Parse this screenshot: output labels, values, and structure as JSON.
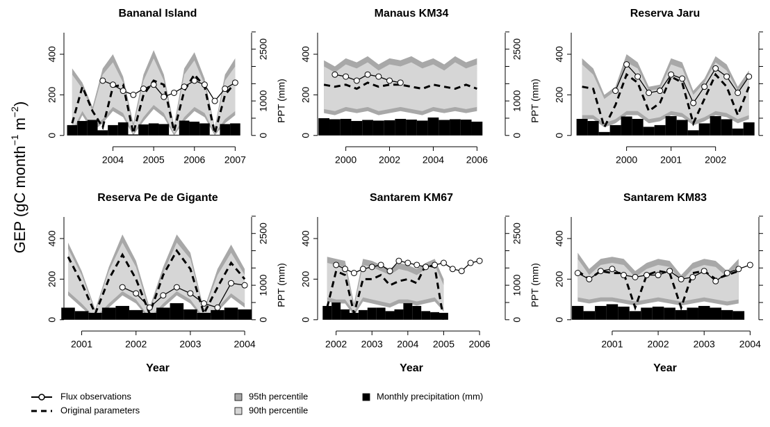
{
  "ylabel": {
    "text": "GEP (gC month",
    "sup1": "−1",
    "mid": " m",
    "sup2": "−2",
    "end": ")"
  },
  "xlabel": "Year",
  "y2label": "PPT (mm)",
  "legend": {
    "flux": {
      "name": "Flux observations",
      "color": "#000000"
    },
    "original": {
      "name": "Original parameters",
      "color": "#000000"
    },
    "p95": {
      "name": "95th percentile",
      "color": "#a8a8a8"
    },
    "p90": {
      "name": "90th percentile",
      "color": "#d6d6d6"
    },
    "precip": {
      "name": "Monthly precipitation (mm)",
      "color": "#000000"
    }
  },
  "chart_data": [
    {
      "type": "band-line",
      "title": "Bananal Island",
      "xlim": [
        2002.9,
        2007.3
      ],
      "xticks": [
        2004,
        2005,
        2006,
        2007
      ],
      "ylim": [
        -35,
        513
      ],
      "yticks": [
        0,
        200,
        400
      ],
      "y2lim": [
        -206,
        3018
      ],
      "y2ticks": [
        0,
        1000,
        2500
      ],
      "y2minor": [
        500,
        1500,
        2000,
        3000
      ],
      "x": [
        2003,
        2003.25,
        2003.5,
        2003.75,
        2004,
        2004.25,
        2004.5,
        2004.75,
        2005,
        2005.25,
        2005.5,
        2005.75,
        2006,
        2006.25,
        2006.5,
        2006.75,
        2007
      ],
      "p95": {
        "upper": [
          330,
          260,
          140,
          330,
          400,
          290,
          60,
          300,
          420,
          300,
          50,
          330,
          410,
          280,
          40,
          300,
          380
        ],
        "lower": [
          0,
          100,
          20,
          60,
          120,
          90,
          0,
          70,
          130,
          90,
          0,
          70,
          120,
          90,
          0,
          60,
          100
        ]
      },
      "p90": {
        "upper": [
          300,
          230,
          120,
          300,
          360,
          260,
          40,
          270,
          380,
          270,
          30,
          300,
          370,
          250,
          30,
          270,
          340
        ],
        "lower": [
          20,
          120,
          40,
          80,
          140,
          110,
          10,
          90,
          150,
          110,
          10,
          90,
          140,
          110,
          10,
          80,
          120
        ]
      },
      "original": [
        60,
        240,
        120,
        40,
        240,
        250,
        10,
        200,
        270,
        250,
        20,
        220,
        300,
        240,
        10,
        200,
        260
      ],
      "flux": [
        null,
        null,
        null,
        270,
        250,
        220,
        200,
        230,
        250,
        190,
        210,
        240,
        270,
        250,
        170,
        230,
        260
      ],
      "precip": [
        300,
        420,
        450,
        150,
        300,
        380,
        30,
        320,
        350,
        330,
        20,
        430,
        400,
        350,
        20,
        330,
        350
      ]
    },
    {
      "type": "band-line",
      "title": "Manaus KM34",
      "xlim": [
        1998.9,
        2007.1
      ],
      "xticks": [
        2000,
        2002,
        2004,
        2006
      ],
      "ylim": [
        -35,
        513
      ],
      "yticks": [
        0,
        200,
        400
      ],
      "y2lim": [
        -206,
        3018
      ],
      "y2ticks": [
        0,
        1000,
        2500
      ],
      "y2minor": [
        500,
        1500,
        2000,
        3000
      ],
      "x": [
        1999,
        1999.5,
        2000,
        2000.5,
        2001,
        2001.5,
        2002,
        2002.5,
        2003,
        2003.5,
        2004,
        2004.5,
        2005,
        2005.5,
        2006
      ],
      "p95": {
        "upper": [
          370,
          340,
          380,
          360,
          390,
          350,
          380,
          370,
          390,
          360,
          380,
          350,
          390,
          360,
          380
        ],
        "lower": [
          110,
          100,
          120,
          110,
          120,
          100,
          110,
          120,
          110,
          100,
          120,
          110,
          120,
          110,
          120
        ]
      },
      "p90": {
        "upper": [
          340,
          310,
          350,
          330,
          360,
          320,
          350,
          340,
          360,
          330,
          350,
          320,
          360,
          330,
          350
        ],
        "lower": [
          130,
          120,
          140,
          130,
          140,
          120,
          130,
          140,
          130,
          120,
          140,
          130,
          140,
          130,
          140
        ]
      },
      "original": [
        250,
        240,
        250,
        230,
        260,
        240,
        250,
        250,
        240,
        230,
        250,
        240,
        230,
        250,
        230
      ],
      "flux": [
        null,
        300,
        290,
        270,
        300,
        290,
        270,
        260,
        null,
        null,
        null,
        null,
        null,
        null,
        null
      ],
      "precip": [
        500,
        470,
        480,
        420,
        450,
        430,
        440,
        480,
        460,
        430,
        520,
        450,
        470,
        460,
        400
      ]
    },
    {
      "type": "band-line",
      "title": "Reserva Jaru",
      "xlim": [
        1998.85,
        2002.88
      ],
      "xticks": [
        2000,
        2001,
        2002
      ],
      "ylim": [
        -35,
        513
      ],
      "yticks": [
        0,
        200,
        400
      ],
      "y2lim": [
        -206,
        3018
      ],
      "y2minor": [
        0,
        500,
        1000,
        1500,
        2000,
        2500,
        3000
      ],
      "x": [
        1999,
        1999.25,
        1999.5,
        1999.75,
        2000,
        2000.25,
        2000.5,
        2000.75,
        2001,
        2001.25,
        2001.5,
        2001.75,
        2002,
        2002.25,
        2002.5,
        2002.75
      ],
      "p95": {
        "upper": [
          380,
          330,
          200,
          240,
          400,
          360,
          240,
          250,
          380,
          360,
          220,
          280,
          390,
          350,
          240,
          320
        ],
        "lower": [
          80,
          80,
          40,
          60,
          100,
          100,
          60,
          70,
          100,
          90,
          50,
          70,
          100,
          90,
          60,
          80
        ]
      },
      "p90": {
        "upper": [
          350,
          300,
          180,
          220,
          360,
          330,
          220,
          230,
          350,
          330,
          200,
          260,
          360,
          320,
          220,
          290
        ],
        "lower": [
          100,
          100,
          60,
          80,
          120,
          120,
          80,
          90,
          120,
          110,
          70,
          90,
          120,
          110,
          80,
          100
        ]
      },
      "original": [
        240,
        230,
        40,
        150,
        300,
        260,
        120,
        160,
        290,
        260,
        60,
        180,
        300,
        240,
        100,
        240
      ],
      "flux": [
        null,
        null,
        null,
        220,
        350,
        290,
        210,
        220,
        300,
        280,
        160,
        240,
        330,
        290,
        210,
        290
      ],
      "precip": [
        480,
        420,
        100,
        300,
        550,
        480,
        250,
        300,
        560,
        450,
        150,
        350,
        560,
        470,
        200,
        380
      ]
    },
    {
      "type": "band-line",
      "title": "Reserva Pe de Gigante",
      "xlim": [
        2000.75,
        2004.05
      ],
      "xticks": [
        2001,
        2002,
        2003,
        2004
      ],
      "ylim": [
        -35,
        513
      ],
      "yticks": [
        0,
        200,
        400
      ],
      "y2lim": [
        -206,
        3018
      ],
      "y2ticks": [
        0,
        1000,
        2500
      ],
      "y2minor": [
        500,
        1500,
        2000,
        3000
      ],
      "x": [
        2000.75,
        2001,
        2001.25,
        2001.5,
        2001.75,
        2002,
        2002.25,
        2002.5,
        2002.75,
        2003,
        2003.25,
        2003.5,
        2003.75,
        2004
      ],
      "p95": {
        "upper": [
          380,
          240,
          50,
          260,
          420,
          290,
          60,
          260,
          420,
          330,
          50,
          250,
          370,
          250
        ],
        "lower": [
          120,
          60,
          0,
          60,
          120,
          80,
          0,
          60,
          120,
          80,
          0,
          40,
          110,
          60
        ]
      },
      "p90": {
        "upper": [
          350,
          220,
          40,
          240,
          380,
          260,
          40,
          230,
          380,
          300,
          40,
          220,
          330,
          220
        ],
        "lower": [
          140,
          80,
          10,
          80,
          140,
          100,
          10,
          80,
          140,
          100,
          10,
          60,
          130,
          80
        ]
      },
      "original": [
        310,
        180,
        30,
        200,
        320,
        200,
        30,
        220,
        340,
        250,
        30,
        160,
        280,
        200
      ],
      "flux": [
        null,
        null,
        null,
        null,
        160,
        130,
        60,
        120,
        160,
        130,
        80,
        60,
        180,
        170
      ],
      "precip": [
        350,
        250,
        200,
        350,
        400,
        280,
        200,
        350,
        480,
        300,
        200,
        280,
        350,
        300
      ]
    },
    {
      "type": "band-line",
      "title": "Santarem KM67",
      "xlim": [
        2001.6,
        2006.6
      ],
      "xticks": [
        2002,
        2003,
        2004,
        2005,
        2006
      ],
      "ylim": [
        -35,
        513
      ],
      "yticks": [
        0,
        200,
        400
      ],
      "y2lim": [
        -206,
        3018
      ],
      "y2ticks": [
        0,
        1000,
        2500
      ],
      "y2minor": [
        500,
        1500,
        2000,
        3000
      ],
      "x": [
        2001.75,
        2002,
        2002.25,
        2002.5,
        2002.75,
        2003,
        2003.25,
        2003.5,
        2003.75,
        2004,
        2004.25,
        2004.5,
        2004.75,
        2005,
        2005.25,
        2005.5,
        2005.75,
        2006
      ],
      "p95": {
        "upper": [
          310,
          300,
          290,
          80,
          300,
          290,
          270,
          250,
          280,
          270,
          250,
          280,
          300,
          200,
          null,
          null,
          null,
          null
        ],
        "lower": [
          90,
          80,
          80,
          20,
          90,
          80,
          70,
          60,
          80,
          80,
          70,
          80,
          90,
          40,
          null,
          null,
          null,
          null
        ]
      },
      "p90": {
        "upper": [
          280,
          270,
          260,
          60,
          270,
          260,
          240,
          220,
          250,
          240,
          220,
          250,
          270,
          170,
          null,
          null,
          null,
          null
        ],
        "lower": [
          110,
          100,
          100,
          40,
          110,
          100,
          90,
          80,
          100,
          100,
          90,
          100,
          110,
          60,
          null,
          null,
          null,
          null
        ]
      },
      "original": [
        60,
        240,
        220,
        30,
        200,
        200,
        220,
        170,
        190,
        200,
        180,
        270,
        260,
        0,
        null,
        null,
        null,
        null
      ],
      "flux": [
        null,
        270,
        250,
        230,
        250,
        260,
        270,
        240,
        290,
        280,
        270,
        260,
        270,
        280,
        250,
        240,
        280,
        290
      ],
      "precip": [
        400,
        500,
        300,
        200,
        280,
        350,
        350,
        250,
        300,
        480,
        400,
        250,
        220,
        200,
        null,
        null,
        null,
        null
      ]
    },
    {
      "type": "band-line",
      "title": "Santarem KM83",
      "xlim": [
        2000.2,
        2004.1
      ],
      "xticks": [
        2001,
        2002,
        2003,
        2004
      ],
      "ylim": [
        -35,
        513
      ],
      "yticks": [
        0,
        200,
        400
      ],
      "y2lim": [
        -206,
        3018
      ],
      "y2minor": [
        0,
        500,
        1000,
        1500,
        2000,
        2500,
        3000
      ],
      "x": [
        2000.25,
        2000.5,
        2000.75,
        2001,
        2001.25,
        2001.5,
        2001.75,
        2002,
        2002.25,
        2002.5,
        2002.75,
        2003,
        2003.25,
        2003.5,
        2003.75,
        2004
      ],
      "p95": {
        "upper": [
          330,
          250,
          300,
          310,
          300,
          240,
          280,
          300,
          290,
          220,
          280,
          300,
          290,
          240,
          300,
          null
        ],
        "lower": [
          90,
          80,
          90,
          90,
          80,
          70,
          80,
          90,
          80,
          70,
          80,
          90,
          80,
          70,
          80,
          null
        ]
      },
      "p90": {
        "upper": [
          300,
          220,
          270,
          280,
          270,
          210,
          250,
          270,
          260,
          190,
          250,
          270,
          260,
          210,
          270,
          null
        ],
        "lower": [
          110,
          100,
          110,
          110,
          100,
          90,
          100,
          110,
          100,
          90,
          100,
          110,
          100,
          90,
          100,
          null
        ]
      },
      "original": [
        240,
        200,
        240,
        230,
        230,
        60,
        220,
        240,
        230,
        60,
        230,
        240,
        200,
        220,
        240,
        null
      ],
      "flux": [
        230,
        200,
        240,
        250,
        220,
        210,
        220,
        220,
        240,
        200,
        210,
        240,
        190,
        230,
        250,
        270
      ],
      "precip": [
        400,
        250,
        400,
        450,
        380,
        250,
        350,
        380,
        350,
        280,
        350,
        400,
        350,
        280,
        250,
        null
      ]
    }
  ]
}
